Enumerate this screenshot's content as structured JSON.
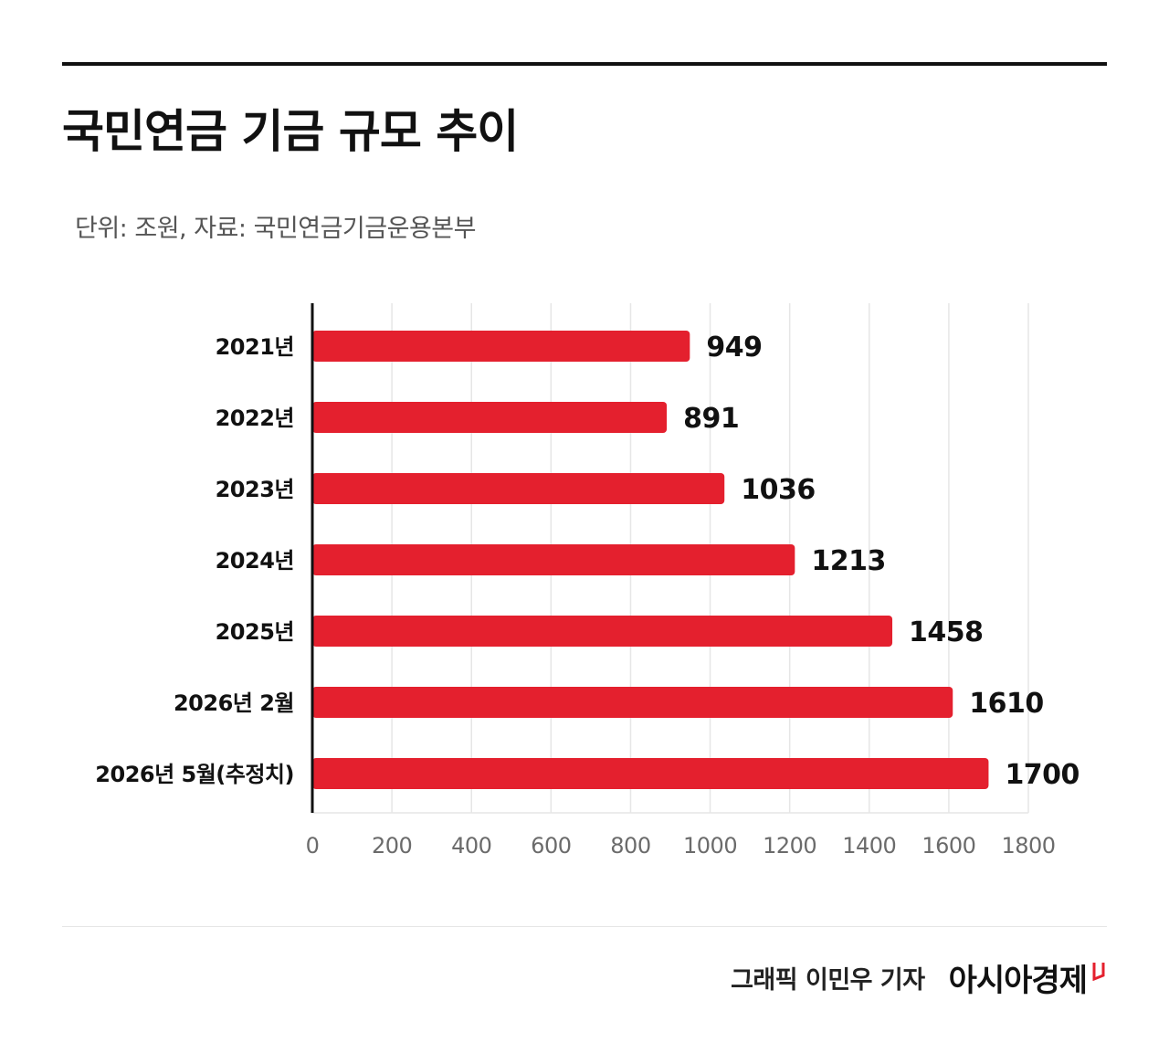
{
  "title": "국민연금 기금 규모 추이",
  "subtitle": "단위: 조원, 자료: 국민연금기금운용본부",
  "footer": {
    "credit": "그래픽  이민우 기자",
    "brand": "아시아경제"
  },
  "colors": {
    "bar": "#e4202e",
    "grid": "#e6e6e6",
    "axis": "#111111",
    "tick_text": "#6b6b6b"
  },
  "chart_data": {
    "type": "bar",
    "orientation": "horizontal",
    "categories": [
      "2021년",
      "2022년",
      "2023년",
      "2024년",
      "2025년",
      "2026년 2월",
      "2026년 5월(추정치)"
    ],
    "values": [
      949,
      891,
      1036,
      1213,
      1458,
      1610,
      1700
    ],
    "xlim": [
      0,
      1800
    ],
    "xticks": [
      0,
      200,
      400,
      600,
      800,
      1000,
      1200,
      1400,
      1600,
      1800
    ],
    "grid": true,
    "data_labels": true
  }
}
